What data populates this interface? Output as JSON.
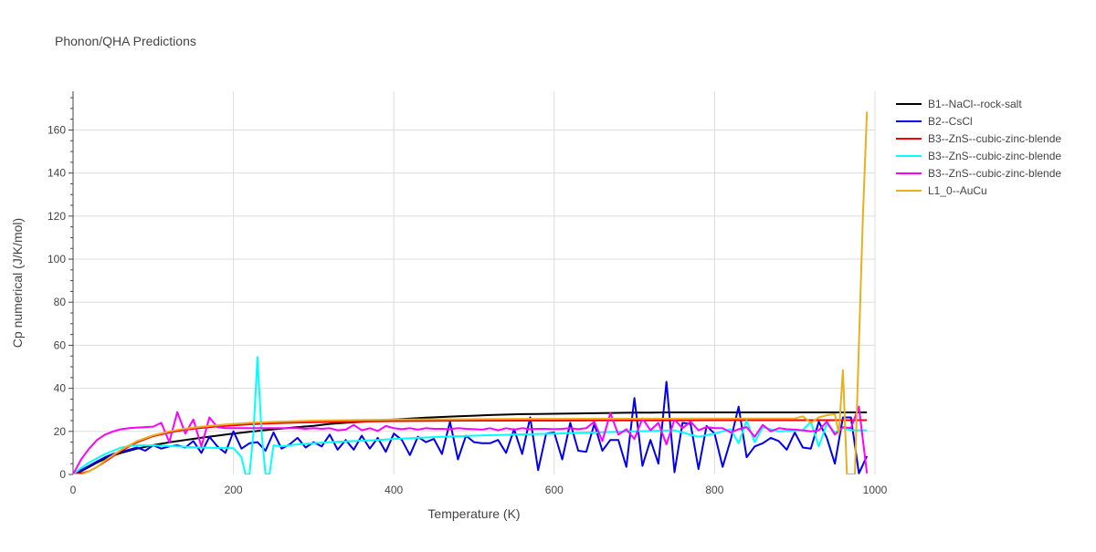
{
  "chart_data": {
    "type": "line",
    "title": "Phonon/QHA Predictions",
    "xlabel": "Temperature (K)",
    "ylabel": "Cp numerical (J/K/mol)",
    "xlim": [
      0,
      1000
    ],
    "ylim": [
      0,
      178
    ],
    "xticks": [
      0,
      200,
      400,
      600,
      800,
      1000
    ],
    "yticks": [
      0,
      20,
      40,
      60,
      80,
      100,
      120,
      140,
      160
    ],
    "grid": true,
    "legend_position": "right",
    "series": [
      {
        "name": "B1--NaCl--rock-salt",
        "color": "#000000",
        "x": [
          0,
          10,
          20,
          30,
          40,
          50,
          60,
          80,
          100,
          120,
          140,
          160,
          180,
          200,
          220,
          240,
          260,
          280,
          300,
          320,
          340,
          360,
          380,
          400,
          420,
          440,
          460,
          480,
          500,
          520,
          540,
          560,
          580,
          600,
          620,
          640,
          660,
          680,
          700,
          720,
          740,
          760,
          780,
          800,
          820,
          840,
          860,
          880,
          900,
          920,
          940,
          960,
          980,
          990
        ],
        "y": [
          0,
          1.5,
          3.5,
          5.5,
          7.3,
          8.8,
          10,
          12,
          13.6,
          14.9,
          16,
          17.1,
          18,
          19,
          19.8,
          20.6,
          21.3,
          22,
          22.6,
          23.5,
          24,
          24.5,
          25,
          25.5,
          26,
          26.4,
          26.7,
          27,
          27.3,
          27.6,
          27.8,
          28,
          28.1,
          28.2,
          28.3,
          28.4,
          28.5,
          28.6,
          28.7,
          28.7,
          28.8,
          28.8,
          28.8,
          28.8,
          28.8,
          28.8,
          28.8,
          28.8,
          28.8,
          28.8,
          28.8,
          28.8,
          28.8,
          28.8
        ]
      },
      {
        "name": "B2--CsCl",
        "color": "#0000ee",
        "x": [
          0,
          10,
          20,
          30,
          40,
          50,
          60,
          70,
          80,
          90,
          100,
          110,
          120,
          130,
          140,
          150,
          160,
          170,
          180,
          190,
          200,
          210,
          220,
          230,
          240,
          250,
          260,
          270,
          280,
          290,
          300,
          310,
          320,
          330,
          340,
          350,
          360,
          370,
          380,
          390,
          400,
          410,
          420,
          430,
          440,
          450,
          460,
          470,
          480,
          490,
          500,
          510,
          520,
          530,
          540,
          550,
          560,
          570,
          580,
          590,
          600,
          610,
          620,
          630,
          640,
          650,
          660,
          670,
          680,
          690,
          700,
          710,
          720,
          730,
          740,
          750,
          760,
          770,
          780,
          790,
          800,
          810,
          820,
          830,
          840,
          850,
          860,
          870,
          880,
          890,
          900,
          910,
          920,
          930,
          940,
          950,
          960,
          970,
          980,
          990
        ],
        "y": [
          0,
          2,
          4,
          6,
          8,
          9.5,
          10.5,
          11.5,
          12.5,
          11,
          13.5,
          12,
          13,
          13.5,
          12.5,
          15.5,
          10,
          17.5,
          13,
          10,
          20,
          12,
          14.5,
          15,
          11,
          19.5,
          12,
          14,
          17,
          12.5,
          15,
          13,
          18.5,
          11.5,
          16,
          11.5,
          18,
          12,
          17,
          10.5,
          19,
          16,
          9,
          17.5,
          15,
          16.5,
          9.5,
          24.5,
          7,
          18,
          15,
          14.5,
          14.5,
          16,
          10,
          21,
          9.5,
          26.5,
          2,
          19,
          19.5,
          7,
          24,
          11,
          10.5,
          23.5,
          11,
          16,
          16,
          3.5,
          35.5,
          4,
          16,
          5,
          43,
          1,
          24,
          23.5,
          2.5,
          22.5,
          19,
          3.5,
          16,
          31.5,
          8,
          13,
          14.5,
          17,
          15.5,
          11.5,
          19.5,
          12.5,
          12,
          24.5,
          17,
          5,
          26.5,
          26.5,
          0.5,
          8.5
        ]
      },
      {
        "name": "B3--ZnS--cubic-zinc-blende",
        "color": "#ff0000",
        "x": [
          0,
          10,
          20,
          30,
          40,
          50,
          60,
          80,
          100,
          120,
          140,
          160,
          180,
          200,
          220,
          240,
          260,
          280,
          300,
          320,
          340,
          360,
          380,
          400,
          450,
          500,
          550,
          600,
          650,
          700,
          750,
          800,
          850,
          900,
          950,
          990
        ],
        "y": [
          0,
          0.5,
          1.5,
          3.5,
          6,
          8.5,
          11,
          15,
          17.8,
          19.5,
          20.8,
          21.6,
          22.3,
          22.8,
          23.3,
          23.6,
          23.9,
          24.1,
          24.3,
          24.4,
          24.5,
          24.6,
          24.7,
          24.8,
          24.9,
          25,
          25,
          25,
          25.1,
          25.1,
          25.1,
          25.2,
          25.2,
          25.2,
          25.2,
          25.2
        ]
      },
      {
        "name": "B3--ZnS--cubic-zinc-blende",
        "color": "#00ffff",
        "x": [
          0,
          10,
          20,
          30,
          40,
          50,
          60,
          70,
          80,
          90,
          100,
          120,
          140,
          160,
          180,
          200,
          210,
          215,
          220,
          225,
          230,
          235,
          240,
          245,
          250,
          260,
          270,
          280,
          300,
          320,
          350,
          380,
          400,
          430,
          460,
          500,
          550,
          600,
          650,
          700,
          750,
          780,
          800,
          820,
          830,
          840,
          850,
          860,
          880,
          900,
          910,
          920,
          930,
          940,
          950,
          960,
          970,
          980,
          990
        ],
        "y": [
          0,
          3,
          5.5,
          7.5,
          9.5,
          11,
          12.5,
          13.2,
          13.5,
          13.5,
          13.5,
          13.2,
          12.8,
          12.5,
          12.3,
          12.2,
          8,
          0,
          0,
          20,
          54.5,
          20,
          0,
          0,
          13.5,
          13,
          13.5,
          14,
          14.5,
          15,
          15.5,
          16,
          16.5,
          17,
          17.5,
          18,
          18.5,
          19,
          19.5,
          20,
          20.5,
          17.5,
          19,
          21,
          14.5,
          25,
          15,
          22,
          20,
          20.5,
          20.5,
          24.5,
          13,
          23.5,
          19.5,
          21.5,
          20.5,
          20.5,
          20.5
        ]
      },
      {
        "name": "B3--ZnS--cubic-zinc-blende",
        "color": "#ff00ff",
        "x": [
          0,
          10,
          20,
          30,
          40,
          50,
          60,
          70,
          80,
          90,
          100,
          110,
          120,
          130,
          140,
          150,
          160,
          170,
          180,
          190,
          200,
          210,
          220,
          230,
          240,
          250,
          260,
          270,
          280,
          290,
          300,
          310,
          320,
          330,
          340,
          350,
          360,
          370,
          380,
          390,
          400,
          410,
          420,
          430,
          440,
          450,
          460,
          470,
          480,
          490,
          500,
          510,
          520,
          530,
          540,
          550,
          560,
          570,
          580,
          590,
          600,
          610,
          620,
          630,
          640,
          650,
          660,
          670,
          680,
          690,
          700,
          710,
          720,
          730,
          740,
          750,
          760,
          770,
          780,
          790,
          800,
          810,
          820,
          830,
          840,
          850,
          860,
          870,
          880,
          890,
          900,
          910,
          920,
          930,
          940,
          950,
          960,
          970,
          980,
          990
        ],
        "y": [
          0,
          7,
          12,
          16,
          18.5,
          20,
          21,
          21.5,
          21.8,
          22,
          22.2,
          24,
          15,
          29,
          19,
          25.5,
          13,
          26.5,
          22,
          21.5,
          21.5,
          21.5,
          21.5,
          21.5,
          21.5,
          21.5,
          21.5,
          21.5,
          21.5,
          21.2,
          21.5,
          21.2,
          21.5,
          20.5,
          20.8,
          23,
          20.5,
          21.5,
          20.2,
          22.5,
          21.5,
          21,
          21.5,
          20.8,
          21.5,
          21.2,
          21.2,
          21,
          21.5,
          21.2,
          21,
          20.8,
          21.5,
          20.5,
          21.5,
          20.8,
          21.5,
          21,
          21.2,
          21.2,
          21,
          21.2,
          21.5,
          21,
          21.5,
          24.5,
          15.5,
          28.5,
          18.5,
          21,
          16.5,
          26,
          20.5,
          24,
          14,
          25.5,
          21.5,
          24.5,
          20.5,
          22,
          21.5,
          21.5,
          19.5,
          21,
          22,
          17.5,
          23,
          20,
          21.5,
          21,
          20.8,
          20.5,
          20,
          20.5,
          24.5,
          18.5,
          22,
          21.5,
          31.5,
          0.5
        ]
      },
      {
        "name": "L1_0--AuCu",
        "color": "#e6b01f",
        "x": [
          0,
          10,
          20,
          30,
          40,
          50,
          60,
          80,
          100,
          120,
          140,
          160,
          180,
          200,
          220,
          240,
          260,
          280,
          300,
          320,
          340,
          360,
          380,
          400,
          450,
          500,
          550,
          600,
          650,
          700,
          750,
          800,
          850,
          880,
          900,
          910,
          920,
          930,
          940,
          950,
          955,
          960,
          965,
          970,
          975,
          980,
          985,
          990
        ],
        "y": [
          0,
          0,
          1.5,
          3.5,
          6.5,
          9,
          11.5,
          15.5,
          18.2,
          20,
          21.3,
          22.2,
          22.9,
          23.5,
          24,
          24.3,
          24.6,
          24.8,
          25,
          25.1,
          25.2,
          25.3,
          25.4,
          25.5,
          25.6,
          25.7,
          25.8,
          25.8,
          25.9,
          25.9,
          25.9,
          26,
          26,
          26,
          26,
          27,
          24,
          26.5,
          27.5,
          28,
          19,
          48.5,
          0,
          0,
          0,
          60,
          120,
          168.5
        ]
      }
    ]
  }
}
